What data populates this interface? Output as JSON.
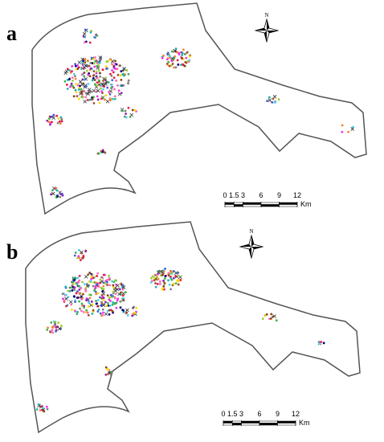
{
  "panels": [
    {
      "label": "a",
      "north": "N",
      "scale": {
        "ticks": [
          0,
          1.5,
          3,
          6,
          9,
          12
        ],
        "unit": "Km"
      }
    },
    {
      "label": "b",
      "north": "N",
      "scale": {
        "ticks": [
          0,
          1.5,
          3,
          6,
          9,
          12
        ],
        "unit": "Km"
      }
    }
  ]
}
